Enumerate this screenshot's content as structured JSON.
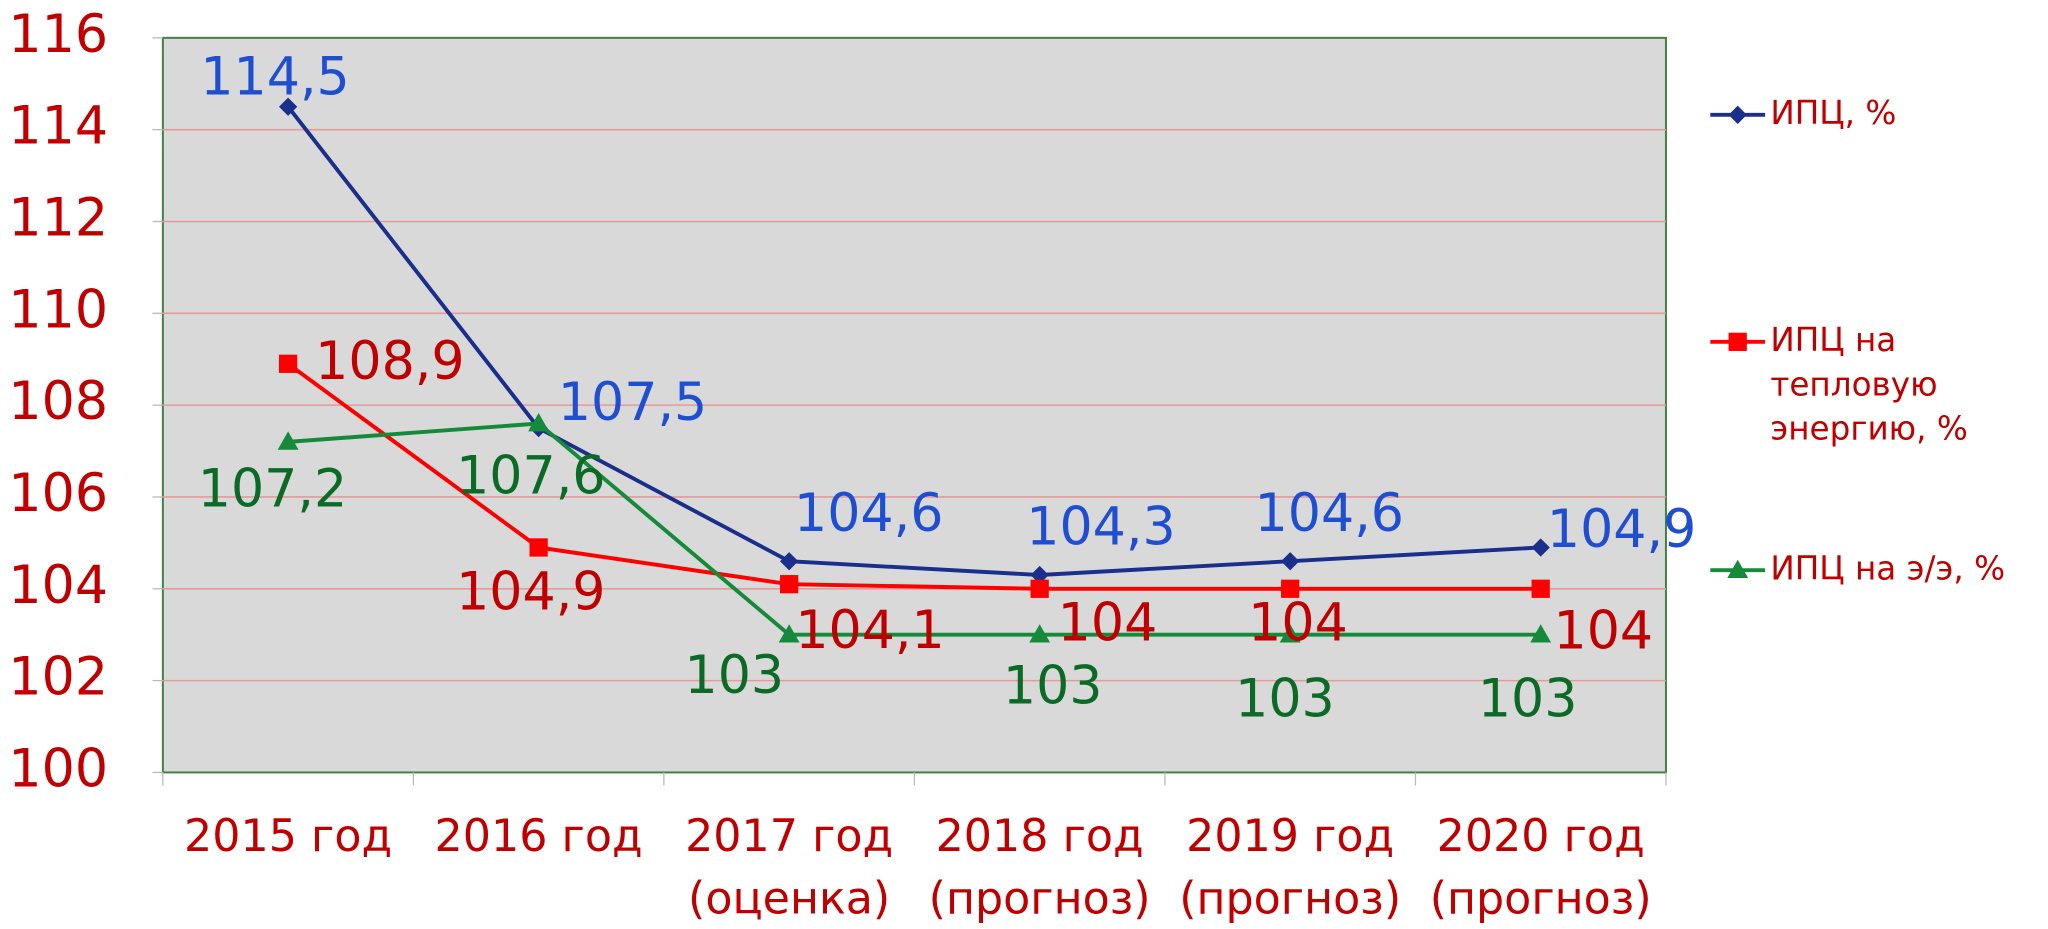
{
  "chart_data": {
    "type": "line",
    "categories": [
      [
        "2015 год"
      ],
      [
        "2016 год"
      ],
      [
        "2017 год",
        "(оценка)"
      ],
      [
        "2018 год",
        "(прогноз)"
      ],
      [
        "2019 год",
        "(прогноз)"
      ],
      [
        "2020 год",
        "(прогноз)"
      ]
    ],
    "series": [
      {
        "name": "ИПЦ, %",
        "color": "#1a2e8c",
        "label_color": "#1f4fd0",
        "marker": "diamond",
        "values": [
          114.5,
          107.5,
          104.6,
          104.3,
          104.6,
          104.9
        ],
        "value_labels": [
          "114,5",
          "107,5",
          "104,6",
          "104,3",
          "104,6",
          "104,9"
        ]
      },
      {
        "name": "ИПЦ на тепловую энергию, %",
        "color": "#ff0000",
        "label_color": "#c00000",
        "marker": "square",
        "values": [
          108.9,
          104.9,
          104.1,
          104,
          104,
          104
        ],
        "value_labels": [
          "108,9",
          "104,9",
          "104,1",
          "104",
          "104",
          "104"
        ]
      },
      {
        "name": "ИПЦ на э/э, %",
        "color": "#158a3a",
        "label_color": "#0b6a26",
        "marker": "triangle",
        "values": [
          107.2,
          107.6,
          103,
          103,
          103,
          103
        ],
        "value_labels": [
          "107,2",
          "107,6",
          "103",
          "103",
          "103",
          "103"
        ]
      }
    ],
    "ylim": [
      100,
      116
    ],
    "yticks": [
      100,
      102,
      104,
      106,
      108,
      110,
      112,
      114,
      116
    ],
    "grid": true,
    "legend": "right"
  }
}
